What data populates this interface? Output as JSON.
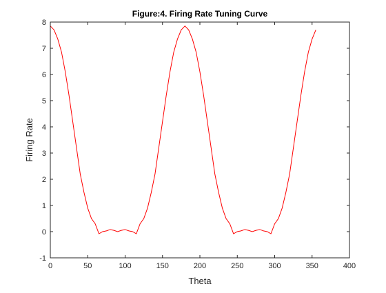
{
  "chart_data": {
    "type": "line",
    "title": "Figure:4. Firing Rate Tuning Curve",
    "xlabel": "Theta",
    "ylabel": "Firing Rate",
    "xlim": [
      0,
      400
    ],
    "ylim": [
      -1,
      8
    ],
    "xticks": [
      0,
      50,
      100,
      150,
      200,
      250,
      300,
      350,
      400
    ],
    "yticks": [
      -1,
      0,
      1,
      2,
      3,
      4,
      5,
      6,
      7,
      8
    ],
    "xtick_labels": [
      "0",
      "50",
      "100",
      "150",
      "200",
      "250",
      "300",
      "350",
      "400"
    ],
    "ytick_labels": [
      "-1",
      "0",
      "1",
      "2",
      "3",
      "4",
      "5",
      "6",
      "7",
      "8"
    ],
    "grid": false,
    "box": true,
    "series": [
      {
        "color": "#ff0000",
        "x": [
          0,
          5,
          10,
          15,
          20,
          25,
          30,
          35,
          40,
          45,
          50,
          55,
          60,
          65,
          70,
          75,
          80,
          85,
          90,
          95,
          100,
          105,
          110,
          115,
          120,
          125,
          130,
          135,
          140,
          145,
          150,
          155,
          160,
          165,
          170,
          175,
          180,
          185,
          190,
          195,
          200,
          205,
          210,
          215,
          220,
          225,
          230,
          235,
          240,
          245,
          250,
          255,
          260,
          265,
          270,
          275,
          280,
          285,
          290,
          295,
          300,
          305,
          310,
          315,
          320,
          325,
          330,
          335,
          340,
          345,
          350,
          355
        ],
        "y": [
          7.85,
          7.7,
          7.35,
          6.85,
          6.1,
          5.2,
          4.2,
          3.2,
          2.2,
          1.5,
          0.9,
          0.5,
          0.3,
          -0.08,
          0.0,
          0.03,
          0.08,
          0.05,
          0.0,
          0.05,
          0.08,
          0.03,
          0.0,
          -0.08,
          0.3,
          0.5,
          0.9,
          1.5,
          2.2,
          3.2,
          4.2,
          5.2,
          6.1,
          6.85,
          7.35,
          7.7,
          7.85,
          7.7,
          7.35,
          6.85,
          6.1,
          5.2,
          4.2,
          3.2,
          2.2,
          1.5,
          0.9,
          0.5,
          0.3,
          -0.08,
          0.0,
          0.03,
          0.08,
          0.05,
          0.0,
          0.05,
          0.08,
          0.03,
          0.0,
          -0.08,
          0.3,
          0.5,
          0.9,
          1.5,
          2.2,
          3.2,
          4.2,
          5.2,
          6.1,
          6.85,
          7.35,
          7.7
        ]
      }
    ]
  }
}
